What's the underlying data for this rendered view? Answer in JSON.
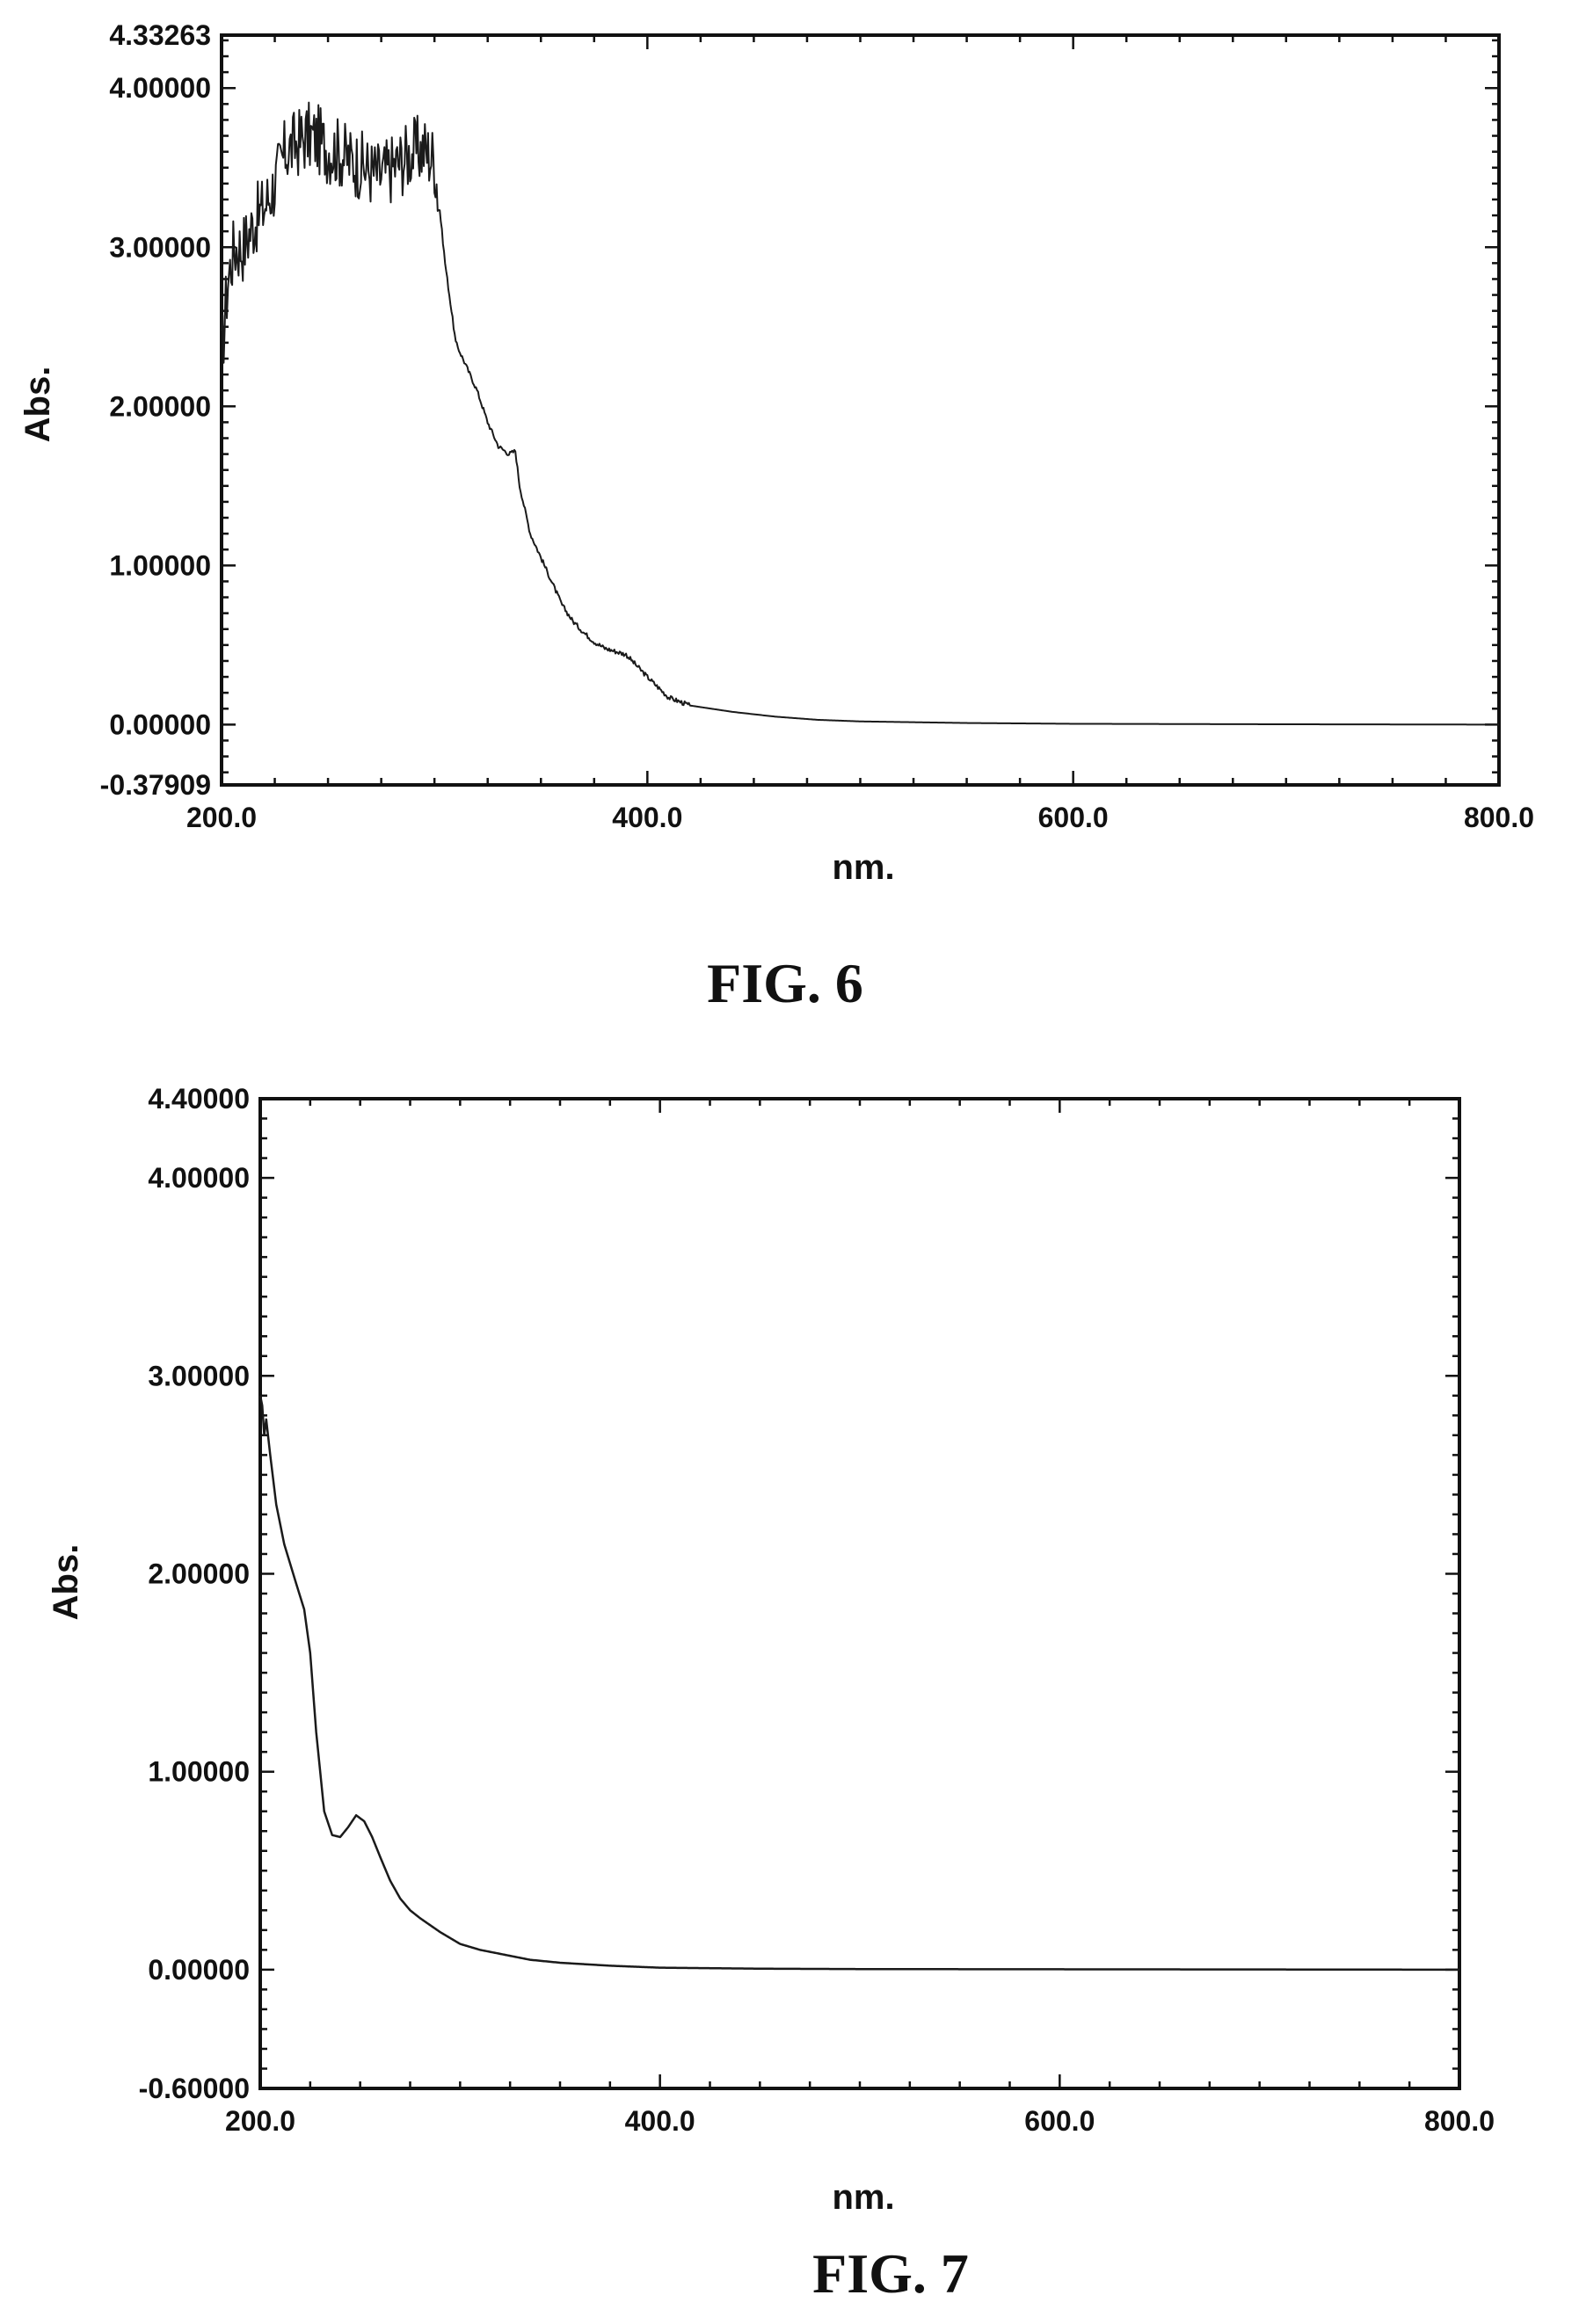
{
  "chart_data": [
    {
      "type": "line",
      "caption": "FIG. 6",
      "xlabel": "nm.",
      "ylabel": "Abs.",
      "xlim": [
        200.0,
        800.0
      ],
      "ylim": [
        -0.37909,
        4.33263
      ],
      "xticks": [
        200,
        400,
        600,
        800
      ],
      "xtick_labels": [
        "200.0",
        "400.0",
        "600.0",
        "800.0"
      ],
      "yticks": [
        4.33263,
        4.0,
        3.0,
        2.0,
        1.0,
        0.0,
        -0.37909
      ],
      "ytick_labels": [
        "4.33263",
        "4.00000",
        "3.00000",
        "2.00000",
        "1.00000",
        "0.00000",
        "-0.37909"
      ],
      "noise_until_x": 302,
      "series": [
        {
          "x": [
            200,
            203,
            206,
            210,
            215,
            220,
            225,
            230,
            235,
            240,
            245,
            250,
            255,
            260,
            265,
            270,
            275,
            280,
            285,
            290,
            295,
            300,
            302,
            305,
            308,
            310,
            315,
            320,
            325,
            330,
            335,
            338,
            340,
            345,
            350,
            355,
            360,
            365,
            370,
            375,
            380,
            385,
            390,
            400,
            410,
            420,
            440,
            460,
            480,
            500,
            550,
            600,
            700,
            800
          ],
          "y": [
            2.3,
            2.8,
            3.0,
            3.0,
            3.15,
            3.25,
            3.4,
            3.6,
            3.65,
            3.7,
            3.68,
            3.62,
            3.6,
            3.55,
            3.52,
            3.48,
            3.45,
            3.5,
            3.55,
            3.6,
            3.62,
            3.55,
            3.3,
            2.9,
            2.6,
            2.4,
            2.25,
            2.1,
            1.9,
            1.75,
            1.7,
            1.72,
            1.5,
            1.2,
            1.05,
            0.9,
            0.75,
            0.65,
            0.58,
            0.52,
            0.48,
            0.46,
            0.44,
            0.3,
            0.17,
            0.12,
            0.08,
            0.05,
            0.03,
            0.02,
            0.01,
            0.005,
            0.002,
            0.0
          ]
        }
      ]
    },
    {
      "type": "line",
      "caption": "FIG. 7",
      "xlabel": "nm.",
      "ylabel": "Abs.",
      "xlim": [
        200.0,
        800.0
      ],
      "ylim": [
        -0.6,
        4.4
      ],
      "xticks": [
        200,
        400,
        600,
        800
      ],
      "xtick_labels": [
        "200.0",
        "400.0",
        "600.0",
        "800.0"
      ],
      "yticks": [
        4.4,
        4.0,
        3.0,
        2.0,
        1.0,
        0.0,
        -0.6
      ],
      "ytick_labels": [
        "4.40000",
        "4.00000",
        "3.00000",
        "2.00000",
        "1.00000",
        "0.00000",
        "-0.60000"
      ],
      "series": [
        {
          "x": [
            200,
            201,
            202,
            203,
            205,
            208,
            212,
            218,
            222,
            225,
            228,
            232,
            236,
            240,
            244,
            248,
            252,
            256,
            260,
            265,
            270,
            275,
            280,
            290,
            300,
            310,
            320,
            335,
            350,
            375,
            400,
            450,
            500,
            600,
            700,
            800
          ],
          "y": [
            2.9,
            2.85,
            2.7,
            2.78,
            2.6,
            2.35,
            2.15,
            1.95,
            1.82,
            1.6,
            1.2,
            0.8,
            0.68,
            0.67,
            0.72,
            0.78,
            0.75,
            0.67,
            0.57,
            0.45,
            0.36,
            0.3,
            0.26,
            0.19,
            0.13,
            0.1,
            0.08,
            0.05,
            0.035,
            0.02,
            0.01,
            0.005,
            0.003,
            0.002,
            0.001,
            0.0
          ]
        }
      ]
    }
  ]
}
